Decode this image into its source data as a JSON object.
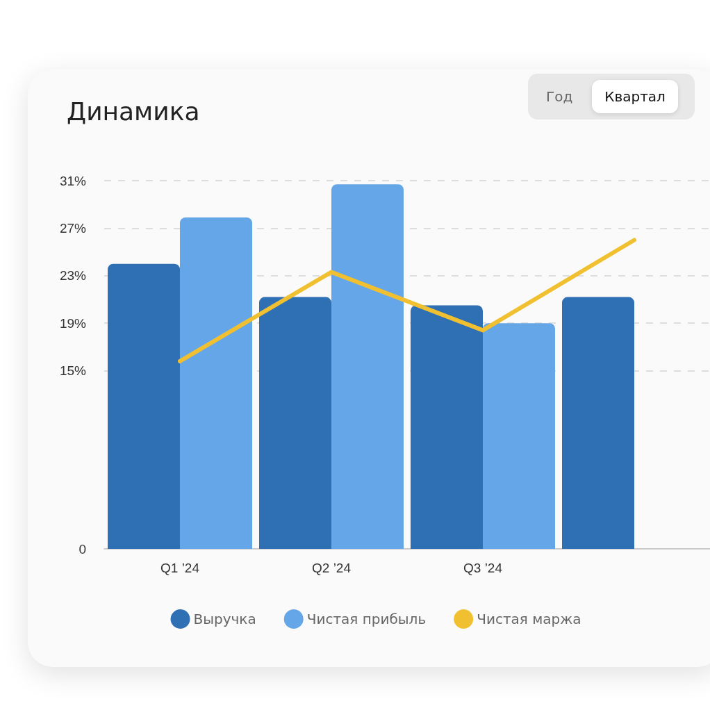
{
  "chart_data": {
    "type": "bar",
    "title": "Динамика",
    "annotations": [
      "Год",
      "Квартал"
    ],
    "categories": [
      "Q1 ’24",
      "Q2 ’24",
      "Q3 ’24",
      null
    ],
    "series": [
      {
        "name": "Выручка",
        "color": "#2f6fb3",
        "values": [
          24.0,
          21.2,
          20.5,
          21.2
        ]
      },
      {
        "name": "Чистая прибыль",
        "color": "#64a6e8",
        "values": [
          27.9,
          30.7,
          19.0,
          null
        ]
      },
      {
        "name": "Чистая маржа",
        "type": "line",
        "color": "#f0c030",
        "values": [
          15.8,
          23.3,
          18.4,
          26.0
        ]
      }
    ],
    "ylim": [
      0,
      31
    ],
    "yticks": [
      0,
      {
        "value": 15,
        "label": "15%"
      },
      {
        "value": 19,
        "label": "19%"
      },
      {
        "value": 23,
        "label": "23%"
      },
      {
        "value": 27,
        "label": "27%"
      },
      {
        "value": 31,
        "label": "31%"
      }
    ],
    "grid": "y",
    "legend": "bottom",
    "marker": "none"
  }
}
